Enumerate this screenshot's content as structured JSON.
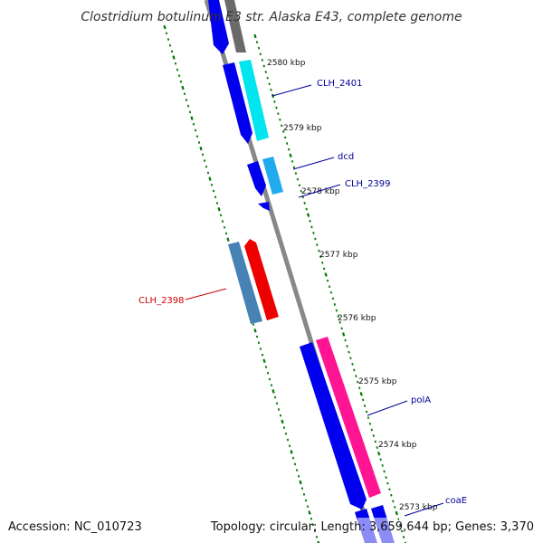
{
  "title": "Clostridium botulinum E3 str. Alaska E43, complete genome",
  "footer": {
    "accession": "Accession: NC_010723",
    "summary": "Topology: circular; Length: 3,659,644 bp; Genes: 3,370"
  },
  "scale": {
    "ticks": [
      "2580 kbp",
      "2579 kbp",
      "2578 kbp",
      "2577 kbp",
      "2576 kbp",
      "2575 kbp",
      "2574 kbp",
      "2573 kbp"
    ]
  },
  "genes": [
    {
      "label": "CLH_2401",
      "color": "#000099"
    },
    {
      "label": "dcd",
      "color": "#000099"
    },
    {
      "label": "CLH_2399",
      "color": "#000099"
    },
    {
      "label": "CLH_2398",
      "color": "#cc0000"
    },
    {
      "label": "polA",
      "color": "#000099"
    },
    {
      "label": "coaE",
      "color": "#000099"
    }
  ],
  "colors": {
    "backbone": "#888888",
    "forward_cds": "#0000ee",
    "cyan_feature": "#00e5ee",
    "lightblue_feature": "#22aaee",
    "steelblue_feature": "#4682b4",
    "red_feature": "#ee0000",
    "pink_feature": "#ff1493",
    "gray_feature": "#666666",
    "tick_color": "#007700"
  }
}
